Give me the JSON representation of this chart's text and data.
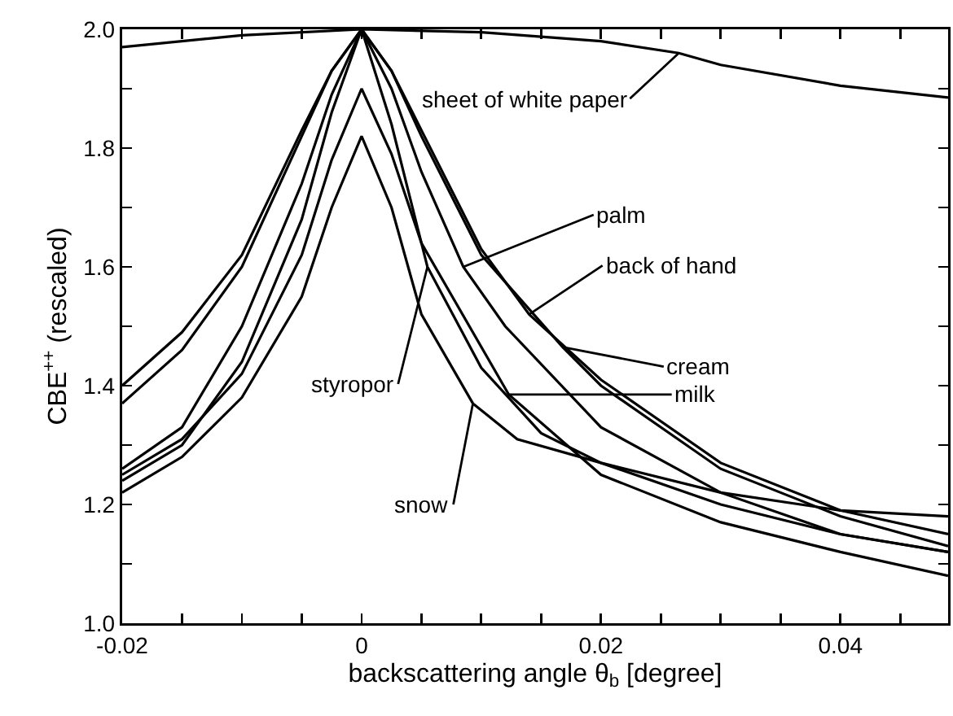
{
  "chart_data": {
    "type": "line",
    "xlabel": "backscattering angle θ$_{b}$ [degree]",
    "ylabel": "CBE$^{++}$ (rescaled)",
    "xlim": [
      -0.02,
      0.049
    ],
    "ylim": [
      1.0,
      2.0
    ],
    "xticks": [
      -0.02,
      {
        "value": -0.015,
        "label": null
      },
      {
        "value": -0.01,
        "label": null
      },
      {
        "value": -0.005,
        "label": null
      },
      0,
      {
        "value": 0.005,
        "label": null
      },
      {
        "value": 0.01,
        "label": null
      },
      {
        "value": 0.015,
        "label": null
      },
      0.02,
      {
        "value": 0.025,
        "label": null
      },
      {
        "value": 0.03,
        "label": null
      },
      {
        "value": 0.035,
        "label": null
      },
      0.04,
      {
        "value": 0.045,
        "label": null
      }
    ],
    "yticks": [
      {
        "value": 1.0,
        "label": "1.0"
      },
      {
        "value": 1.1,
        "label": null
      },
      1.2,
      {
        "value": 1.3,
        "label": null
      },
      1.4,
      {
        "value": 1.5,
        "label": null
      },
      1.6,
      {
        "value": 1.7,
        "label": null
      },
      1.8,
      {
        "value": 1.9,
        "label": null
      },
      {
        "value": 2.0,
        "label": "2.0"
      }
    ],
    "grid": false,
    "marker": "none",
    "line_style": "solid",
    "annotations": [
      {
        "text": "sheet of white paper",
        "x": 0.0265,
        "y": 1.96
      },
      {
        "text": "palm",
        "x": 0.0085,
        "y": 1.6
      },
      {
        "text": "back of hand",
        "x": 0.014,
        "y": 1.52
      },
      {
        "text": "cream",
        "x": 0.0168,
        "y": 1.465
      },
      {
        "text": "milk",
        "x": 0.0123,
        "y": 1.385
      },
      {
        "text": "styropor",
        "x": 0.0055,
        "y": 1.6
      },
      {
        "text": "snow",
        "x": 0.0093,
        "y": 1.37
      }
    ],
    "series": [
      {
        "color": "#000000",
        "x": [
          -0.02,
          -0.01,
          0,
          0.01,
          0.02,
          0.0265,
          0.03,
          0.04,
          0.049
        ],
        "values": [
          1.97,
          1.99,
          2.0,
          1.995,
          1.98,
          1.96,
          1.94,
          1.905,
          1.885
        ]
      },
      {
        "color": "#000000",
        "x": [
          -0.02,
          -0.015,
          -0.01,
          -0.005,
          -0.0025,
          0,
          0.0025,
          0.005,
          0.0085,
          0.012,
          0.02,
          0.03,
          0.04,
          0.049
        ],
        "values": [
          1.26,
          1.33,
          1.5,
          1.74,
          1.89,
          2.0,
          1.9,
          1.76,
          1.6,
          1.5,
          1.33,
          1.22,
          1.15,
          1.12
        ]
      },
      {
        "color": "#000000",
        "x": [
          -0.02,
          -0.015,
          -0.01,
          -0.005,
          -0.0025,
          0,
          0.0025,
          0.005,
          0.01,
          0.014,
          0.02,
          0.03,
          0.04,
          0.049
        ],
        "values": [
          1.4,
          1.49,
          1.62,
          1.83,
          1.93,
          2.0,
          1.93,
          1.83,
          1.63,
          1.52,
          1.41,
          1.27,
          1.19,
          1.15
        ]
      },
      {
        "color": "#000000",
        "x": [
          -0.02,
          -0.015,
          -0.01,
          -0.005,
          -0.0025,
          0,
          0.0025,
          0.005,
          0.01,
          0.0168,
          0.02,
          0.03,
          0.04,
          0.049
        ],
        "values": [
          1.37,
          1.46,
          1.6,
          1.82,
          1.93,
          2.0,
          1.93,
          1.82,
          1.62,
          1.465,
          1.4,
          1.26,
          1.18,
          1.13
        ]
      },
      {
        "color": "#000000",
        "x": [
          -0.02,
          -0.015,
          -0.01,
          -0.005,
          -0.0025,
          0,
          0.0025,
          0.005,
          0.0123,
          0.02,
          0.03,
          0.04,
          0.049
        ],
        "values": [
          1.25,
          1.31,
          1.42,
          1.62,
          1.78,
          1.9,
          1.79,
          1.64,
          1.385,
          1.25,
          1.17,
          1.12,
          1.08
        ]
      },
      {
        "color": "#000000",
        "x": [
          -0.02,
          -0.015,
          -0.01,
          -0.005,
          -0.0025,
          0,
          0.0025,
          0.0055,
          0.01,
          0.015,
          0.02,
          0.03,
          0.04,
          0.049
        ],
        "values": [
          1.24,
          1.3,
          1.44,
          1.68,
          1.86,
          2.0,
          1.84,
          1.6,
          1.43,
          1.32,
          1.27,
          1.2,
          1.15,
          1.12
        ]
      },
      {
        "color": "#000000",
        "x": [
          -0.02,
          -0.015,
          -0.01,
          -0.005,
          -0.0025,
          0,
          0.0025,
          0.005,
          0.0093,
          0.013,
          0.02,
          0.03,
          0.04,
          0.049
        ],
        "values": [
          1.22,
          1.28,
          1.38,
          1.55,
          1.7,
          1.82,
          1.7,
          1.52,
          1.37,
          1.31,
          1.27,
          1.22,
          1.19,
          1.18
        ]
      }
    ]
  }
}
